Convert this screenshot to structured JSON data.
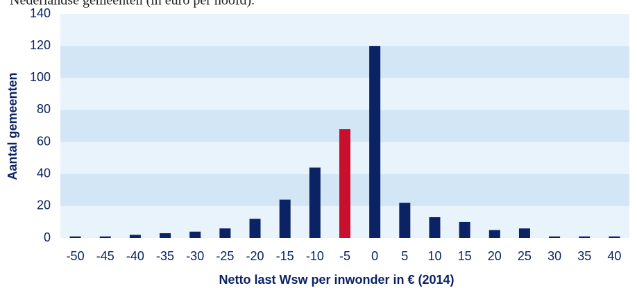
{
  "chart_data": {
    "type": "bar",
    "subtitle": "Nederlandse gemeenten (in euro per hoofd).",
    "x_label": "Netto last Wsw per inwonder in € (2014)",
    "y_label": "Aantal gemeenten",
    "categories": [
      "-50",
      "-45",
      "-40",
      "-35",
      "-30",
      "-25",
      "-20",
      "-15",
      "-10",
      "-5",
      "0",
      "5",
      "10",
      "15",
      "20",
      "25",
      "30",
      "35",
      "40"
    ],
    "values": [
      1,
      1,
      2,
      3,
      4,
      6,
      12,
      24,
      44,
      68,
      120,
      22,
      13,
      10,
      5,
      6,
      1,
      1,
      1
    ],
    "colors": [
      "#0b2265",
      "#0b2265",
      "#0b2265",
      "#0b2265",
      "#0b2265",
      "#0b2265",
      "#0b2265",
      "#0b2265",
      "#0b2265",
      "#c8102e",
      "#0b2265",
      "#0b2265",
      "#0b2265",
      "#0b2265",
      "#0b2265",
      "#0b2265",
      "#0b2265",
      "#0b2265",
      "#0b2265"
    ],
    "ylim": [
      0,
      140
    ],
    "yticks": [
      0,
      20,
      40,
      60,
      80,
      100,
      120,
      140
    ],
    "grid": true
  }
}
